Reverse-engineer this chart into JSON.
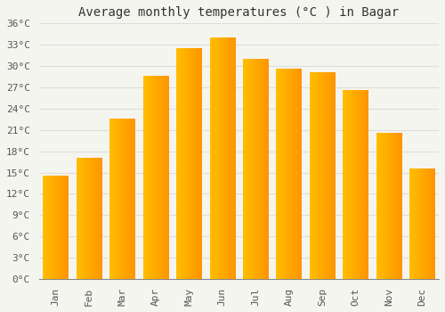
{
  "title": "Average monthly temperatures (°C ) in Bagar",
  "months": [
    "Jan",
    "Feb",
    "Mar",
    "Apr",
    "May",
    "Jun",
    "Jul",
    "Aug",
    "Sep",
    "Oct",
    "Nov",
    "Dec"
  ],
  "values": [
    14.5,
    17.0,
    22.5,
    28.5,
    32.5,
    34.0,
    31.0,
    29.5,
    29.0,
    26.5,
    20.5,
    15.5
  ],
  "bar_color_left": "#FFBE00",
  "bar_color_right": "#FF9500",
  "background_color": "#F5F5F0",
  "plot_bg_color": "#F5F5F0",
  "grid_color": "#DDDDDD",
  "ylim": [
    0,
    36
  ],
  "ytick_step": 3,
  "title_fontsize": 10,
  "tick_fontsize": 8,
  "font_family": "monospace"
}
